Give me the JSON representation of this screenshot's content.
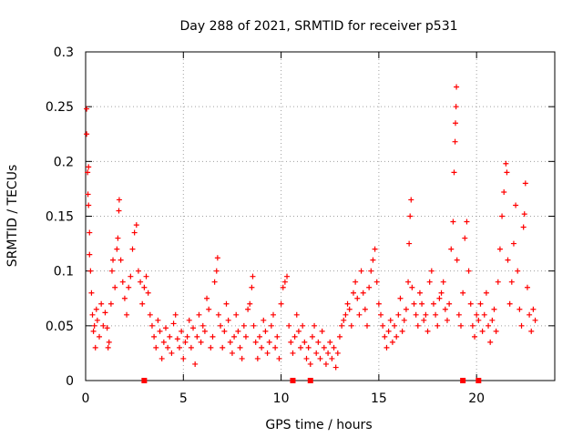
{
  "chart_data": {
    "type": "scatter",
    "title": "Day 288 of 2021, SRMTID for receiver p531",
    "xlabel": "GPS time / hours",
    "ylabel": "SRMTID / TECUs",
    "xlim": [
      0,
      24
    ],
    "ylim": [
      0,
      0.3
    ],
    "grid": true,
    "marker": "+",
    "x_ticks": [
      {
        "value": 0,
        "label": "0"
      },
      {
        "value": 5,
        "label": "5"
      },
      {
        "value": 10,
        "label": "10"
      },
      {
        "value": 15,
        "label": "15"
      },
      {
        "value": 20,
        "label": "20"
      }
    ],
    "y_ticks": [
      {
        "value": 0,
        "label": "0"
      },
      {
        "value": 0.05,
        "label": "0.05"
      },
      {
        "value": 0.1,
        "label": "0.1"
      },
      {
        "value": 0.15,
        "label": "0.15"
      },
      {
        "value": 0.2,
        "label": "0.2"
      },
      {
        "value": 0.25,
        "label": "0.25"
      },
      {
        "value": 0.3,
        "label": "0.3"
      }
    ],
    "baseline_markers_x": [
      3.0,
      10.6,
      11.5,
      19.3,
      20.1
    ],
    "series": [
      {
        "name": "SRMTID",
        "color": "#ff0000",
        "points": [
          [
            0.05,
            0.248
          ],
          [
            0.05,
            0.225
          ],
          [
            0.1,
            0.19
          ],
          [
            0.12,
            0.17
          ],
          [
            0.15,
            0.16
          ],
          [
            0.15,
            0.195
          ],
          [
            0.2,
            0.135
          ],
          [
            0.2,
            0.115
          ],
          [
            0.25,
            0.1
          ],
          [
            0.3,
            0.08
          ],
          [
            0.35,
            0.06
          ],
          [
            0.4,
            0.045
          ],
          [
            0.45,
            0.05
          ],
          [
            0.5,
            0.03
          ],
          [
            0.55,
            0.065
          ],
          [
            0.6,
            0.055
          ],
          [
            0.7,
            0.04
          ],
          [
            0.8,
            0.07
          ],
          [
            0.9,
            0.05
          ],
          [
            1.0,
            0.062
          ],
          [
            1.1,
            0.048
          ],
          [
            1.15,
            0.03
          ],
          [
            1.2,
            0.035
          ],
          [
            1.3,
            0.07
          ],
          [
            1.35,
            0.1
          ],
          [
            1.4,
            0.11
          ],
          [
            1.5,
            0.085
          ],
          [
            1.6,
            0.12
          ],
          [
            1.65,
            0.13
          ],
          [
            1.7,
            0.155
          ],
          [
            1.72,
            0.165
          ],
          [
            1.8,
            0.11
          ],
          [
            1.9,
            0.09
          ],
          [
            2.0,
            0.075
          ],
          [
            2.1,
            0.06
          ],
          [
            2.2,
            0.085
          ],
          [
            2.3,
            0.095
          ],
          [
            2.4,
            0.12
          ],
          [
            2.5,
            0.135
          ],
          [
            2.6,
            0.142
          ],
          [
            2.7,
            0.1
          ],
          [
            2.8,
            0.09
          ],
          [
            2.9,
            0.07
          ],
          [
            3.0,
            0.085
          ],
          [
            3.1,
            0.095
          ],
          [
            3.2,
            0.08
          ],
          [
            3.3,
            0.06
          ],
          [
            3.4,
            0.05
          ],
          [
            3.5,
            0.04
          ],
          [
            3.6,
            0.03
          ],
          [
            3.7,
            0.055
          ],
          [
            3.8,
            0.045
          ],
          [
            3.9,
            0.02
          ],
          [
            4.0,
            0.035
          ],
          [
            4.1,
            0.048
          ],
          [
            4.2,
            0.03
          ],
          [
            4.3,
            0.04
          ],
          [
            4.4,
            0.025
          ],
          [
            4.5,
            0.052
          ],
          [
            4.6,
            0.06
          ],
          [
            4.7,
            0.038
          ],
          [
            4.8,
            0.03
          ],
          [
            4.9,
            0.045
          ],
          [
            5.0,
            0.02
          ],
          [
            5.1,
            0.035
          ],
          [
            5.2,
            0.04
          ],
          [
            5.3,
            0.055
          ],
          [
            5.4,
            0.03
          ],
          [
            5.5,
            0.048
          ],
          [
            5.6,
            0.015
          ],
          [
            5.7,
            0.04
          ],
          [
            5.8,
            0.06
          ],
          [
            5.9,
            0.035
          ],
          [
            6.0,
            0.05
          ],
          [
            6.1,
            0.045
          ],
          [
            6.2,
            0.075
          ],
          [
            6.3,
            0.065
          ],
          [
            6.4,
            0.03
          ],
          [
            6.5,
            0.04
          ],
          [
            6.6,
            0.09
          ],
          [
            6.7,
            0.1
          ],
          [
            6.75,
            0.112
          ],
          [
            6.8,
            0.06
          ],
          [
            6.9,
            0.05
          ],
          [
            7.0,
            0.03
          ],
          [
            7.1,
            0.045
          ],
          [
            7.2,
            0.07
          ],
          [
            7.3,
            0.055
          ],
          [
            7.4,
            0.035
          ],
          [
            7.5,
            0.025
          ],
          [
            7.6,
            0.04
          ],
          [
            7.7,
            0.06
          ],
          [
            7.8,
            0.045
          ],
          [
            7.9,
            0.03
          ],
          [
            8.0,
            0.02
          ],
          [
            8.1,
            0.05
          ],
          [
            8.2,
            0.04
          ],
          [
            8.3,
            0.065
          ],
          [
            8.4,
            0.07
          ],
          [
            8.5,
            0.085
          ],
          [
            8.55,
            0.095
          ],
          [
            8.6,
            0.05
          ],
          [
            8.7,
            0.035
          ],
          [
            8.8,
            0.02
          ],
          [
            8.9,
            0.04
          ],
          [
            9.0,
            0.03
          ],
          [
            9.1,
            0.055
          ],
          [
            9.2,
            0.045
          ],
          [
            9.3,
            0.025
          ],
          [
            9.4,
            0.035
          ],
          [
            9.5,
            0.05
          ],
          [
            9.6,
            0.06
          ],
          [
            9.7,
            0.03
          ],
          [
            9.8,
            0.04
          ],
          [
            9.9,
            0.02
          ],
          [
            10.0,
            0.07
          ],
          [
            10.1,
            0.085
          ],
          [
            10.2,
            0.09
          ],
          [
            10.3,
            0.095
          ],
          [
            10.4,
            0.05
          ],
          [
            10.5,
            0.035
          ],
          [
            10.6,
            0.025
          ],
          [
            10.7,
            0.04
          ],
          [
            10.8,
            0.06
          ],
          [
            10.9,
            0.045
          ],
          [
            11.0,
            0.03
          ],
          [
            11.1,
            0.05
          ],
          [
            11.2,
            0.035
          ],
          [
            11.3,
            0.02
          ],
          [
            11.4,
            0.03
          ],
          [
            11.5,
            0.015
          ],
          [
            11.6,
            0.04
          ],
          [
            11.7,
            0.05
          ],
          [
            11.8,
            0.025
          ],
          [
            11.9,
            0.035
          ],
          [
            12.0,
            0.02
          ],
          [
            12.1,
            0.045
          ],
          [
            12.2,
            0.03
          ],
          [
            12.3,
            0.015
          ],
          [
            12.4,
            0.025
          ],
          [
            12.5,
            0.035
          ],
          [
            12.6,
            0.02
          ],
          [
            12.7,
            0.03
          ],
          [
            12.8,
            0.012
          ],
          [
            12.9,
            0.025
          ],
          [
            13.0,
            0.04
          ],
          [
            13.1,
            0.05
          ],
          [
            13.2,
            0.055
          ],
          [
            13.3,
            0.06
          ],
          [
            13.4,
            0.07
          ],
          [
            13.5,
            0.065
          ],
          [
            13.6,
            0.05
          ],
          [
            13.7,
            0.08
          ],
          [
            13.8,
            0.09
          ],
          [
            13.9,
            0.075
          ],
          [
            14.0,
            0.06
          ],
          [
            14.1,
            0.1
          ],
          [
            14.2,
            0.08
          ],
          [
            14.3,
            0.065
          ],
          [
            14.4,
            0.05
          ],
          [
            14.5,
            0.085
          ],
          [
            14.6,
            0.1
          ],
          [
            14.7,
            0.11
          ],
          [
            14.8,
            0.12
          ],
          [
            14.9,
            0.09
          ],
          [
            15.0,
            0.07
          ],
          [
            15.1,
            0.06
          ],
          [
            15.2,
            0.05
          ],
          [
            15.3,
            0.04
          ],
          [
            15.4,
            0.03
          ],
          [
            15.5,
            0.045
          ],
          [
            15.6,
            0.055
          ],
          [
            15.7,
            0.035
          ],
          [
            15.8,
            0.05
          ],
          [
            15.9,
            0.04
          ],
          [
            16.0,
            0.06
          ],
          [
            16.1,
            0.075
          ],
          [
            16.2,
            0.045
          ],
          [
            16.3,
            0.055
          ],
          [
            16.4,
            0.065
          ],
          [
            16.5,
            0.09
          ],
          [
            16.55,
            0.125
          ],
          [
            16.6,
            0.15
          ],
          [
            16.65,
            0.165
          ],
          [
            16.7,
            0.085
          ],
          [
            16.8,
            0.07
          ],
          [
            16.9,
            0.06
          ],
          [
            17.0,
            0.05
          ],
          [
            17.1,
            0.08
          ],
          [
            17.2,
            0.07
          ],
          [
            17.3,
            0.055
          ],
          [
            17.4,
            0.06
          ],
          [
            17.5,
            0.045
          ],
          [
            17.6,
            0.09
          ],
          [
            17.7,
            0.1
          ],
          [
            17.8,
            0.07
          ],
          [
            17.9,
            0.06
          ],
          [
            18.0,
            0.05
          ],
          [
            18.1,
            0.075
          ],
          [
            18.2,
            0.08
          ],
          [
            18.3,
            0.09
          ],
          [
            18.4,
            0.065
          ],
          [
            18.5,
            0.055
          ],
          [
            18.6,
            0.07
          ],
          [
            18.7,
            0.12
          ],
          [
            18.8,
            0.145
          ],
          [
            18.85,
            0.19
          ],
          [
            18.9,
            0.218
          ],
          [
            18.92,
            0.235
          ],
          [
            18.95,
            0.25
          ],
          [
            18.97,
            0.268
          ],
          [
            19.0,
            0.11
          ],
          [
            19.1,
            0.06
          ],
          [
            19.2,
            0.05
          ],
          [
            19.3,
            0.08
          ],
          [
            19.4,
            0.13
          ],
          [
            19.5,
            0.145
          ],
          [
            19.6,
            0.1
          ],
          [
            19.7,
            0.07
          ],
          [
            19.8,
            0.05
          ],
          [
            19.9,
            0.04
          ],
          [
            20.0,
            0.06
          ],
          [
            20.1,
            0.055
          ],
          [
            20.2,
            0.07
          ],
          [
            20.3,
            0.045
          ],
          [
            20.4,
            0.06
          ],
          [
            20.5,
            0.08
          ],
          [
            20.6,
            0.05
          ],
          [
            20.7,
            0.035
          ],
          [
            20.8,
            0.055
          ],
          [
            20.9,
            0.065
          ],
          [
            21.0,
            0.045
          ],
          [
            21.1,
            0.09
          ],
          [
            21.2,
            0.12
          ],
          [
            21.3,
            0.15
          ],
          [
            21.4,
            0.172
          ],
          [
            21.5,
            0.198
          ],
          [
            21.55,
            0.19
          ],
          [
            21.6,
            0.11
          ],
          [
            21.7,
            0.07
          ],
          [
            21.8,
            0.09
          ],
          [
            21.9,
            0.125
          ],
          [
            22.0,
            0.16
          ],
          [
            22.1,
            0.1
          ],
          [
            22.2,
            0.065
          ],
          [
            22.3,
            0.05
          ],
          [
            22.4,
            0.14
          ],
          [
            22.45,
            0.152
          ],
          [
            22.5,
            0.18
          ],
          [
            22.6,
            0.085
          ],
          [
            22.7,
            0.06
          ],
          [
            22.8,
            0.045
          ],
          [
            22.9,
            0.065
          ],
          [
            23.0,
            0.055
          ]
        ]
      }
    ]
  }
}
